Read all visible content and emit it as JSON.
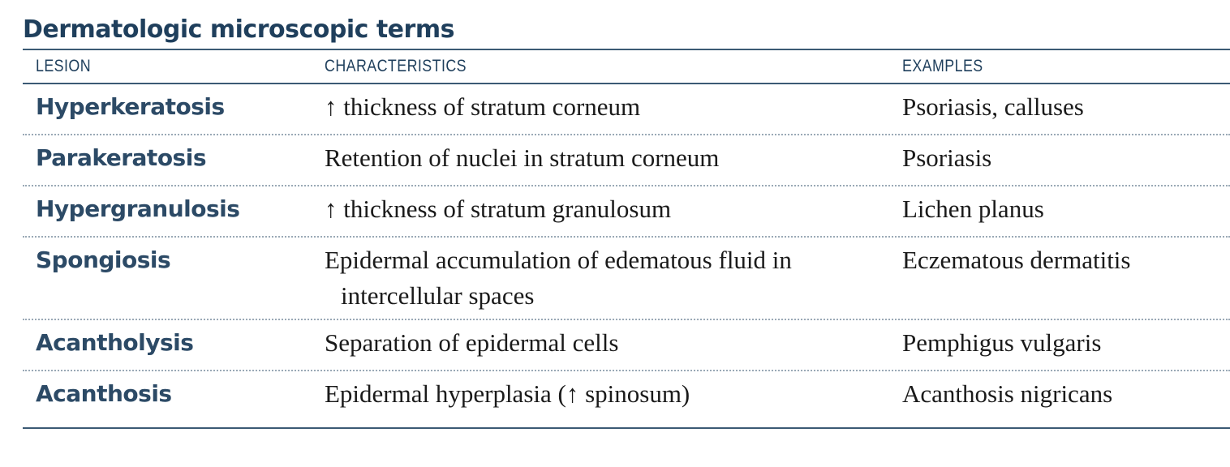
{
  "title": "Dermatologic microscopic terms",
  "headers": {
    "lesion": "LESION",
    "characteristics": "CHARACTERISTICS",
    "examples": "EXAMPLES"
  },
  "rows": [
    {
      "lesion": "Hyperkeratosis",
      "characteristics": "↑ thickness of stratum corneum",
      "examples": "Psoriasis, calluses"
    },
    {
      "lesion": "Parakeratosis",
      "characteristics": "Retention of nuclei in stratum corneum",
      "examples": "Psoriasis"
    },
    {
      "lesion": "Hypergranulosis",
      "characteristics": "↑ thickness of stratum granulosum",
      "examples": "Lichen planus"
    },
    {
      "lesion": "Spongiosis",
      "characteristics": "Epidermal accumulation of edematous fluid in intercellular spaces",
      "examples": "Eczematous dermatitis"
    },
    {
      "lesion": "Acantholysis",
      "characteristics": "Separation of epidermal cells",
      "examples": "Pemphigus vulgaris"
    },
    {
      "lesion": "Acanthosis",
      "characteristics": "Epidermal hyperplasia (↑ spinosum)",
      "examples": "Acanthosis nigricans"
    }
  ],
  "colors": {
    "title": "#1f3f5c",
    "lesion": "#2c4a66",
    "rule": "#3b5a74",
    "divider": "#9aa9b6"
  }
}
